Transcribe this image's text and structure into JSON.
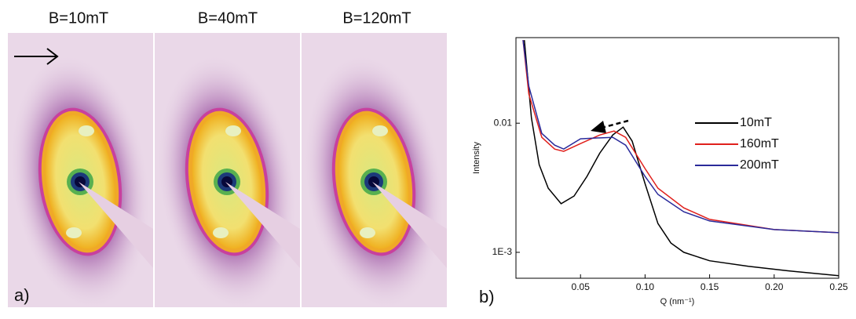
{
  "figure": {
    "panels": [
      {
        "title": "B=10mT"
      },
      {
        "title": "B=40mT"
      },
      {
        "title": "B=120mT"
      }
    ],
    "label": "a)"
  },
  "chart_data": {
    "type": "line",
    "label": "b)",
    "xlabel": "Q (nm⁻¹)",
    "ylabel": "Intensity",
    "log_y": true,
    "xlim": [
      0,
      0.25
    ],
    "ylim": [
      0.00063,
      0.046
    ],
    "xticks": [
      0.05,
      {
        "value": 0.1,
        "label": "0.10"
      },
      0.15,
      {
        "value": 0.2,
        "label": "0.20"
      },
      0.25
    ],
    "yticks": [
      {
        "value": 0.001,
        "label": "1E-3"
      },
      0.01
    ],
    "series": [
      {
        "name": "10mT",
        "color": "#000000",
        "x": [
          0.0065,
          0.012,
          0.018,
          0.025,
          0.035,
          0.045,
          0.055,
          0.065,
          0.075,
          0.083,
          0.09,
          0.1,
          0.11,
          0.12,
          0.13,
          0.15,
          0.18,
          0.21,
          0.25
        ],
        "values": [
          0.044,
          0.011,
          0.00477,
          0.00314,
          0.00238,
          0.00273,
          0.00387,
          0.00589,
          0.00811,
          0.00933,
          0.00726,
          0.0034,
          0.00167,
          0.00118,
          0.001,
          0.00086,
          0.00078,
          0.00072,
          0.00066
        ]
      },
      {
        "name": "160mT",
        "color": "#e0201c",
        "x": [
          0.0055,
          0.01,
          0.02,
          0.03,
          0.037,
          0.05,
          0.065,
          0.076,
          0.085,
          0.1,
          0.11,
          0.13,
          0.15,
          0.2,
          0.25
        ],
        "values": [
          0.044,
          0.0168,
          0.00778,
          0.0063,
          0.00605,
          0.00695,
          0.00811,
          0.00869,
          0.00778,
          0.00445,
          0.00314,
          0.00221,
          0.0018,
          0.0015,
          0.00142
        ]
      },
      {
        "name": "200mT",
        "color": "#2a2a9a",
        "x": [
          0.0055,
          0.01,
          0.02,
          0.03,
          0.037,
          0.05,
          0.06,
          0.075,
          0.085,
          0.1,
          0.11,
          0.13,
          0.15,
          0.2,
          0.25
        ],
        "values": [
          0.044,
          0.0193,
          0.00834,
          0.00676,
          0.0063,
          0.00757,
          0.00767,
          0.00778,
          0.00676,
          0.00387,
          0.00281,
          0.00206,
          0.00175,
          0.0015,
          0.00142
        ]
      }
    ]
  }
}
